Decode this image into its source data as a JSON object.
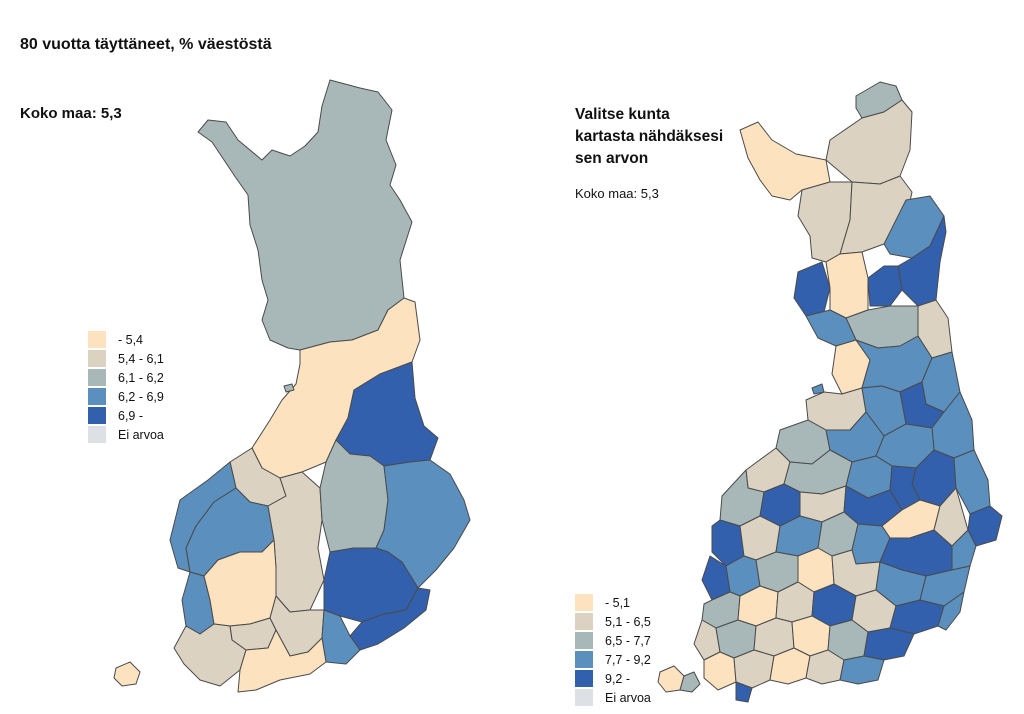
{
  "title": "80 vuotta täyttäneet, % väestöstä",
  "left_map": {
    "total": "Koko maa: 5,3",
    "legend": [
      {
        "label": "- 5,4",
        "color": "#fde2c0"
      },
      {
        "label": "5,4 - 6,1",
        "color": "#dbd2c1"
      },
      {
        "label": "6,1 - 6,2",
        "color": "#a8b8b8"
      },
      {
        "label": "6,2 - 6,9",
        "color": "#5b8fbd"
      },
      {
        "label": "6,9 -",
        "color": "#3360ad"
      },
      {
        "label": "Ei arvoa",
        "color": "#dde1e6"
      }
    ]
  },
  "right_map": {
    "prompt_line1": "Valitse kunta",
    "prompt_line2": "kartasta nähdäksesi",
    "prompt_line3": "sen arvon",
    "total": "Koko maa: 5,3",
    "legend": [
      {
        "label": "- 5,1",
        "color": "#fde2c0"
      },
      {
        "label": "5,1 - 6,5",
        "color": "#dbd2c1"
      },
      {
        "label": "6,5 - 7,7",
        "color": "#a8b8b8"
      },
      {
        "label": "7,7 - 9,2",
        "color": "#5b8fbd"
      },
      {
        "label": "9,2 -",
        "color": "#3360ad"
      },
      {
        "label": "Ei arvoa",
        "color": "#dde1e6"
      }
    ]
  }
}
